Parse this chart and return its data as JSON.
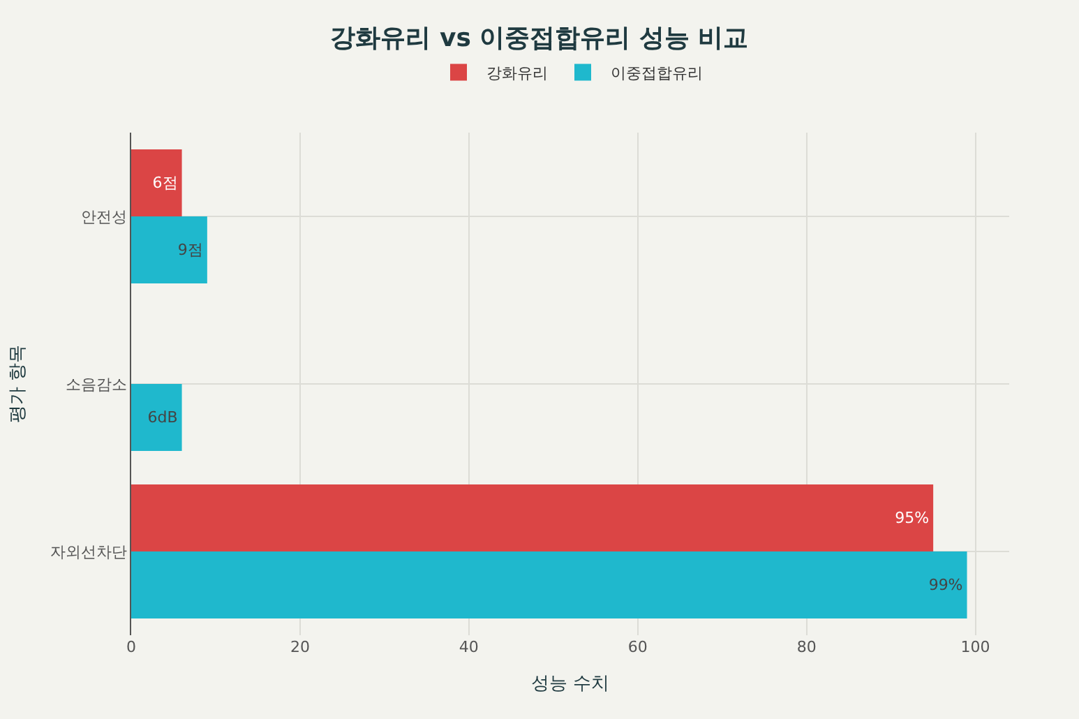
{
  "chart_data": {
    "type": "bar",
    "orientation": "horizontal",
    "title": "강화유리 vs 이중접합유리 성능 비교",
    "xlabel": "성능 수치",
    "ylabel": "평가 항목",
    "categories": [
      "안전성",
      "소음감소",
      "자외선차단"
    ],
    "series": [
      {
        "name": "강화유리",
        "color": "#db4545",
        "values": [
          6,
          null,
          95
        ],
        "value_labels": [
          "6점",
          null,
          "95%"
        ]
      },
      {
        "name": "이중접합유리",
        "color": "#1fb8cd",
        "values": [
          9,
          6,
          99
        ],
        "value_labels": [
          "9점",
          "6dB",
          "99%"
        ]
      }
    ],
    "xlim": [
      0,
      104
    ],
    "xticks": [
      0,
      20,
      40,
      60,
      80,
      100
    ],
    "grid": true,
    "legend": "top"
  }
}
